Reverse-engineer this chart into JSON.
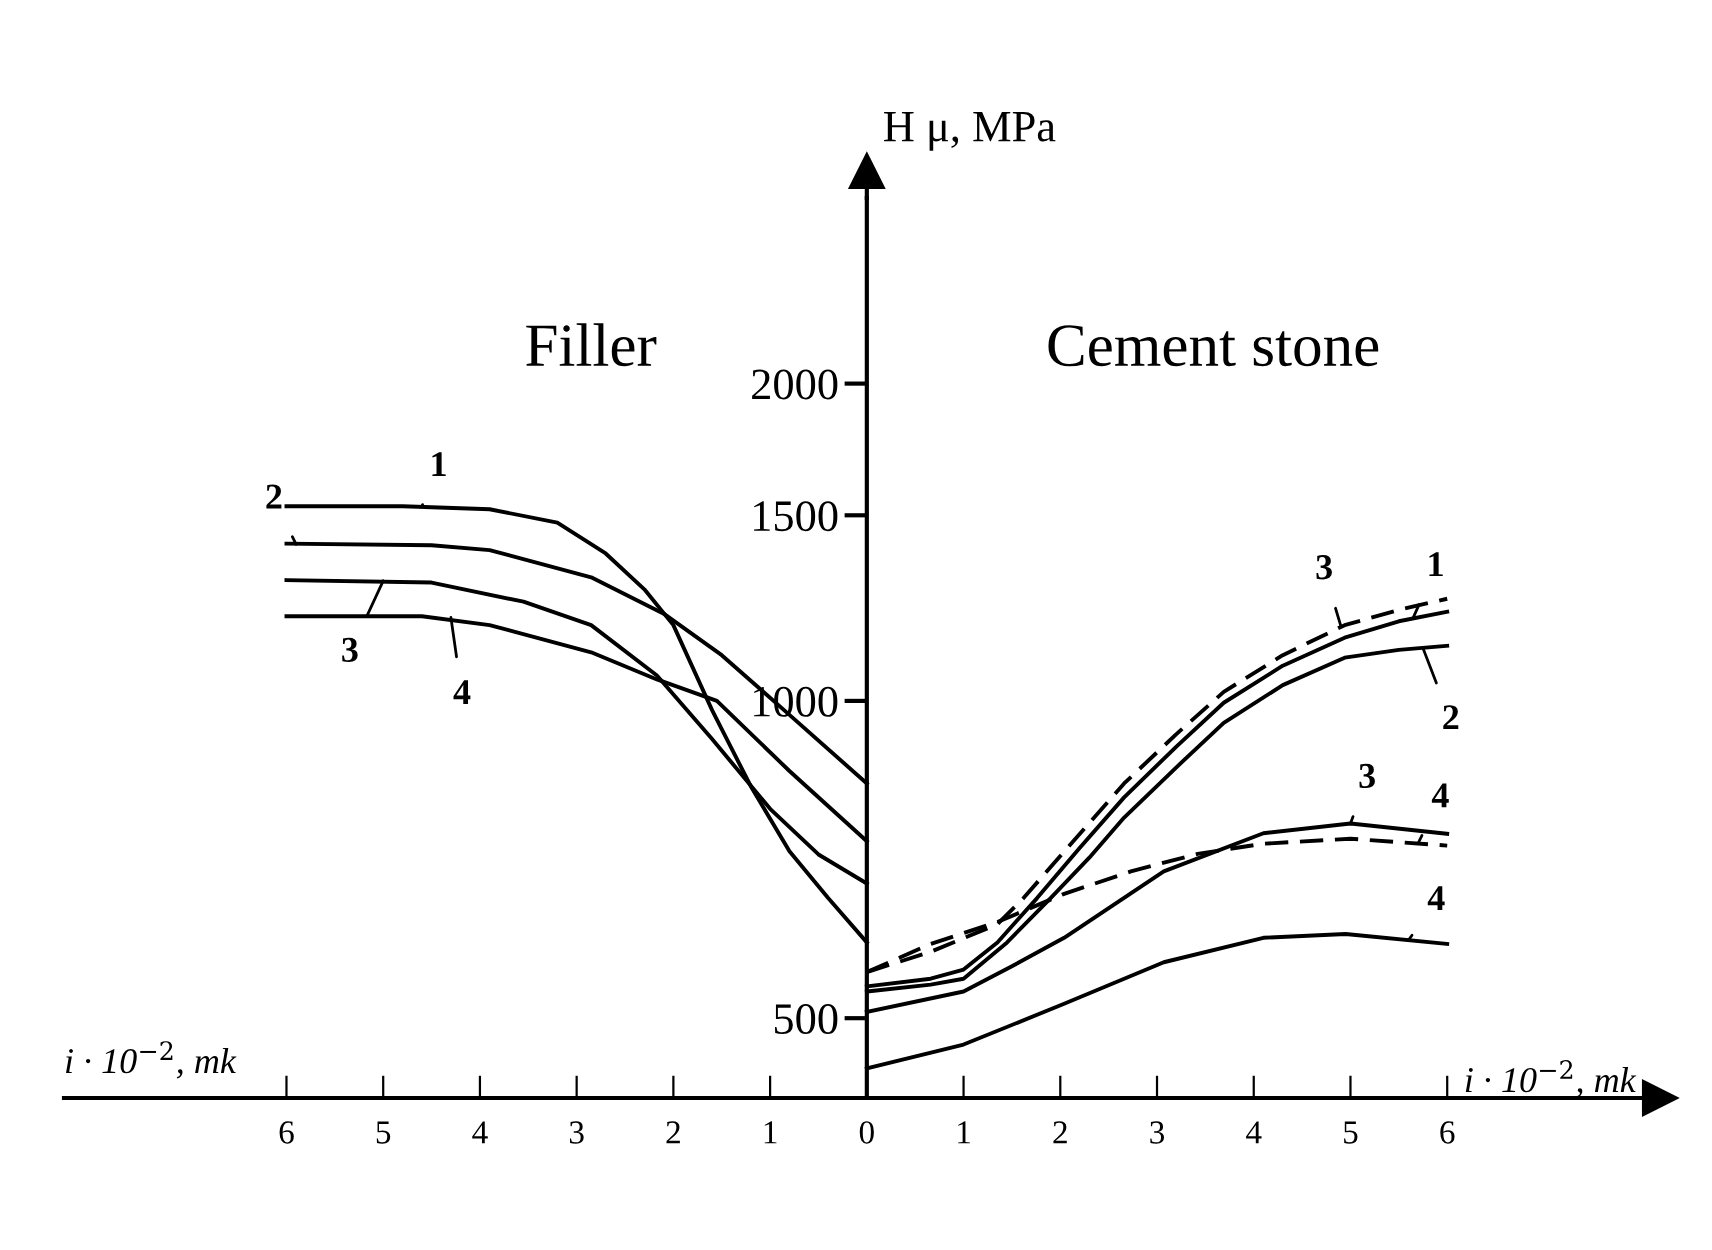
{
  "chart_data": {
    "type": "line",
    "xlabel": "i · 10$^{−2}$, mk",
    "ylabel": "H μ, MPa",
    "log": "y",
    "xlim": [
      -8.3,
      8.2
    ],
    "ylim": [
      420,
      3000
    ],
    "xticks": [
      {
        "value": -6,
        "label": "6"
      },
      {
        "value": -5,
        "label": "5"
      },
      {
        "value": -4,
        "label": "4"
      },
      {
        "value": -3,
        "label": "3"
      },
      {
        "value": -2,
        "label": "2"
      },
      {
        "value": -1,
        "label": "1"
      },
      0,
      1,
      2,
      3,
      4,
      5,
      6
    ],
    "yticks": [
      500,
      1000,
      1500,
      2000
    ],
    "series": [
      {
        "color": "#000000",
        "line_style": "solid",
        "x": [
          -6,
          -4.8,
          -3.9,
          -3.2,
          -2.7,
          -2.3,
          -2.0,
          -1.6,
          -1.2,
          -0.8,
          -0.4,
          0
        ],
        "values": [
          1530,
          1530,
          1520,
          1476,
          1380,
          1276,
          1180,
          980,
          830,
          720,
          650,
          590
        ]
      },
      {
        "color": "#000000",
        "line_style": "solid",
        "x": [
          -6,
          -4.5,
          -3.9,
          -2.85,
          -2.1,
          -1.5,
          -0.8,
          0
        ],
        "values": [
          1410,
          1405,
          1390,
          1310,
          1210,
          1105,
          970,
          835
        ]
      },
      {
        "color": "#000000",
        "line_style": "solid",
        "x": [
          -6,
          -4.5,
          -3.55,
          -2.85,
          -2.17,
          -1.6,
          -1.0,
          -0.5,
          0
        ],
        "values": [
          1302,
          1295,
          1242,
          1180,
          1057,
          920,
          790,
          715,
          671
        ]
      },
      {
        "color": "#000000",
        "line_style": "solid",
        "x": [
          -6,
          -4.6,
          -3.9,
          -2.85,
          -2.17,
          -1.55,
          -0.8,
          0
        ],
        "values": [
          1203,
          1203,
          1180,
          1112,
          1048,
          1000,
          858,
          736
        ]
      },
      {
        "color": "#000000",
        "line_style": "solid",
        "x": [
          0,
          0.66,
          1.0,
          1.35,
          1.76,
          2.2,
          2.66,
          3.2,
          3.69,
          4.3,
          4.94,
          5.5,
          6
        ],
        "values": [
          536,
          545,
          556,
          590,
          650,
          725,
          810,
          905,
          996,
          1080,
          1148,
          1190,
          1215
        ]
      },
      {
        "color": "#000000",
        "line_style": "solid",
        "x": [
          0,
          0.66,
          1.0,
          1.45,
          1.9,
          2.3,
          2.66,
          3.2,
          3.69,
          4.3,
          4.94,
          5.5,
          6
        ],
        "values": [
          530,
          538,
          545,
          590,
          650,
          710,
          775,
          865,
          953,
          1035,
          1099,
          1118,
          1128
        ]
      },
      {
        "color": "#000000",
        "line_style": "solid",
        "x": [
          0,
          1.0,
          1.5,
          2.04,
          3.07,
          4.1,
          5.0,
          6
        ],
        "values": [
          507,
          530,
          560,
          596,
          689,
          749,
          765,
          748
        ]
      },
      {
        "color": "#000000",
        "line_style": "solid",
        "x": [
          0,
          1.0,
          2.04,
          3.07,
          4.1,
          4.95,
          6
        ],
        "values": [
          448,
          472,
          516,
          565,
          596,
          601,
          588
        ]
      },
      {
        "color": "#000000",
        "line_style": "dashed",
        "x": [
          0,
          0.66,
          1.35,
          1.62,
          2.1,
          2.66,
          3.2,
          3.69,
          4.3,
          4.94,
          5.5,
          6
        ],
        "values": [
          553,
          578,
          614,
          650,
          730,
          835,
          930,
          1020,
          1105,
          1180,
          1220,
          1250
        ]
      },
      {
        "color": "#000000",
        "line_style": "dashed",
        "x": [
          0,
          0.66,
          1.35,
          2.04,
          2.73,
          3.42,
          4.1,
          5.0,
          6
        ],
        "values": [
          553,
          588,
          617,
          656,
          689,
          716,
          732,
          740,
          729
        ]
      }
    ],
    "annotations": [
      "Filler",
      "Cement stone",
      "i · 10$^{−2}$, mk",
      {
        "text": "1",
        "x": -4.6,
        "y": 1530
      },
      {
        "text": "2",
        "x": -5.9,
        "y": 1408
      },
      {
        "text": "3",
        "x": -5.0,
        "y": 1300
      },
      {
        "text": "4",
        "x": -4.3,
        "y": 1200
      },
      {
        "text": "3",
        "x": 4.9,
        "y": 1178
      },
      {
        "text": "1",
        "x": 5.65,
        "y": 1200
      },
      {
        "text": "2",
        "x": 5.75,
        "y": 1122
      },
      {
        "text": "3",
        "x": 5.0,
        "y": 765
      },
      {
        "text": "4",
        "x": 5.7,
        "y": 733
      },
      {
        "text": "4",
        "x": 5.6,
        "y": 593
      }
    ]
  }
}
